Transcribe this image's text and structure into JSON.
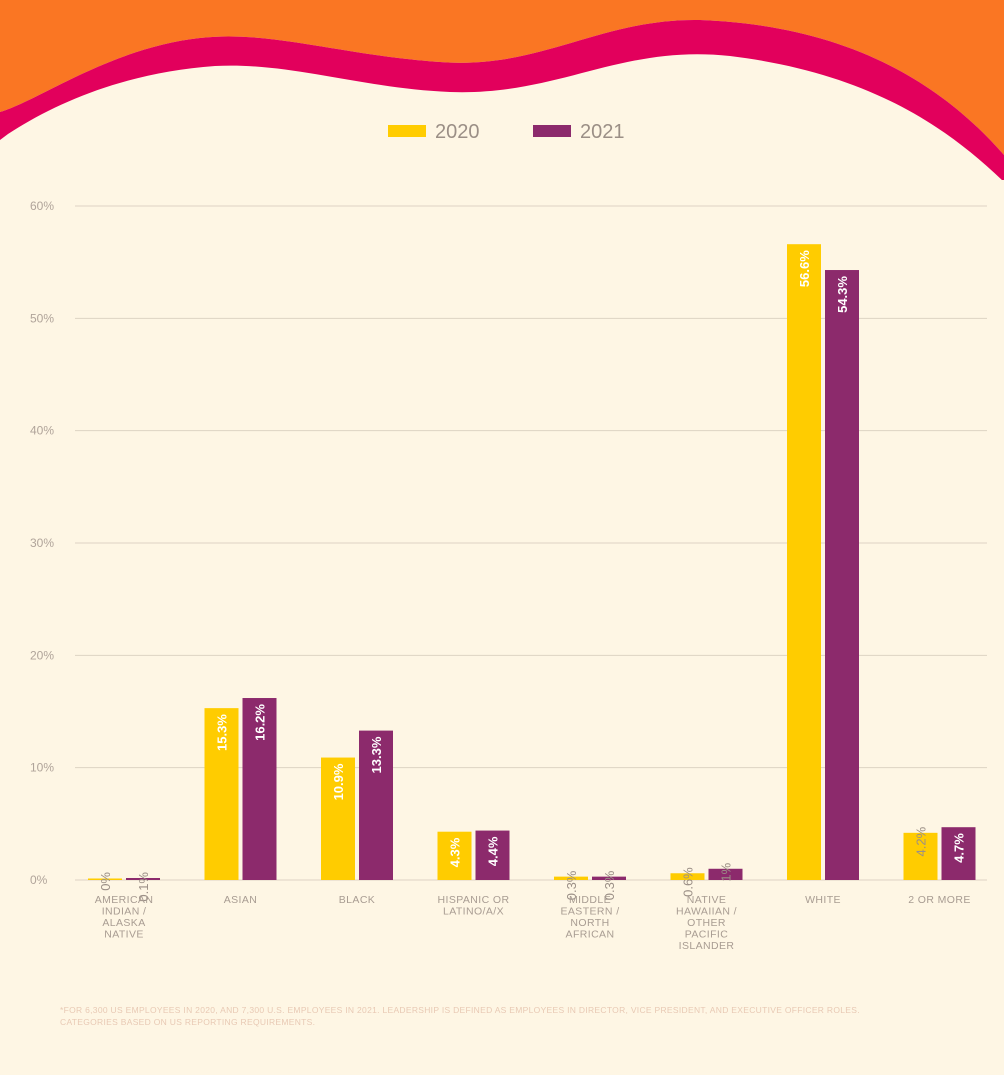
{
  "colors": {
    "background": "#fef6e4",
    "wave_orange": "#fa7623",
    "wave_magenta": "#e2005c",
    "series_2020": "#ffcc00",
    "series_2021": "#8c2a6c",
    "gridline": "#ddd3c3",
    "axis_text": "#b0a49a",
    "category_text": "#a89c92",
    "legend_text": "#9b8f86",
    "bar_label_on_bar": "#ffffff",
    "bar_label_above": "#9b8f86"
  },
  "chart_data": {
    "type": "bar",
    "categories": [
      "AMERICAN\nINDIAN /\nALASKA\nNATIVE",
      "ASIAN",
      "BLACK",
      "HISPANIC OR\nLATINO/A/X",
      "MIDDLE\nEASTERN /\nNORTH\nAFRICAN",
      "NATIVE\nHAWAIIAN /\nOTHER\nPACIFIC\nISLANDER",
      "WHITE",
      "2 OR MORE"
    ],
    "series": [
      {
        "name": "2020",
        "values": [
          0,
          15.3,
          10.9,
          4.3,
          0.3,
          0.6,
          56.6,
          4.2
        ],
        "labels": [
          "0%",
          "15.3%",
          "10.9%",
          "4.3%",
          "0.3%",
          "0.6%",
          "56.6%",
          "4.2%"
        ]
      },
      {
        "name": "2021",
        "values": [
          0.1,
          16.2,
          13.3,
          4.4,
          0.3,
          1,
          54.3,
          4.7
        ],
        "labels": [
          "0.1%",
          "16.2%",
          "13.3%",
          "4.4%",
          "0.3%",
          "1%",
          "54.3%",
          "4.7%"
        ]
      }
    ],
    "yticks": [
      0,
      10,
      20,
      30,
      40,
      50,
      60
    ],
    "ytick_labels": [
      "0%",
      "10%",
      "20%",
      "30%",
      "40%",
      "50%",
      "60%"
    ],
    "ylim": [
      0,
      60
    ],
    "grid": true,
    "legend_position": "top-center",
    "title": "",
    "xlabel": "",
    "ylabel": ""
  },
  "footnote": "*FOR 6,300 US EMPLOYEES IN 2020, AND 7,300 U.S. EMPLOYEES IN 2021. LEADERSHIP IS DEFINED AS EMPLOYEES IN DIRECTOR, VICE PRESIDENT, AND EXECUTIVE OFFICER ROLES. CATEGORIES BASED ON US REPORTING REQUIREMENTS."
}
